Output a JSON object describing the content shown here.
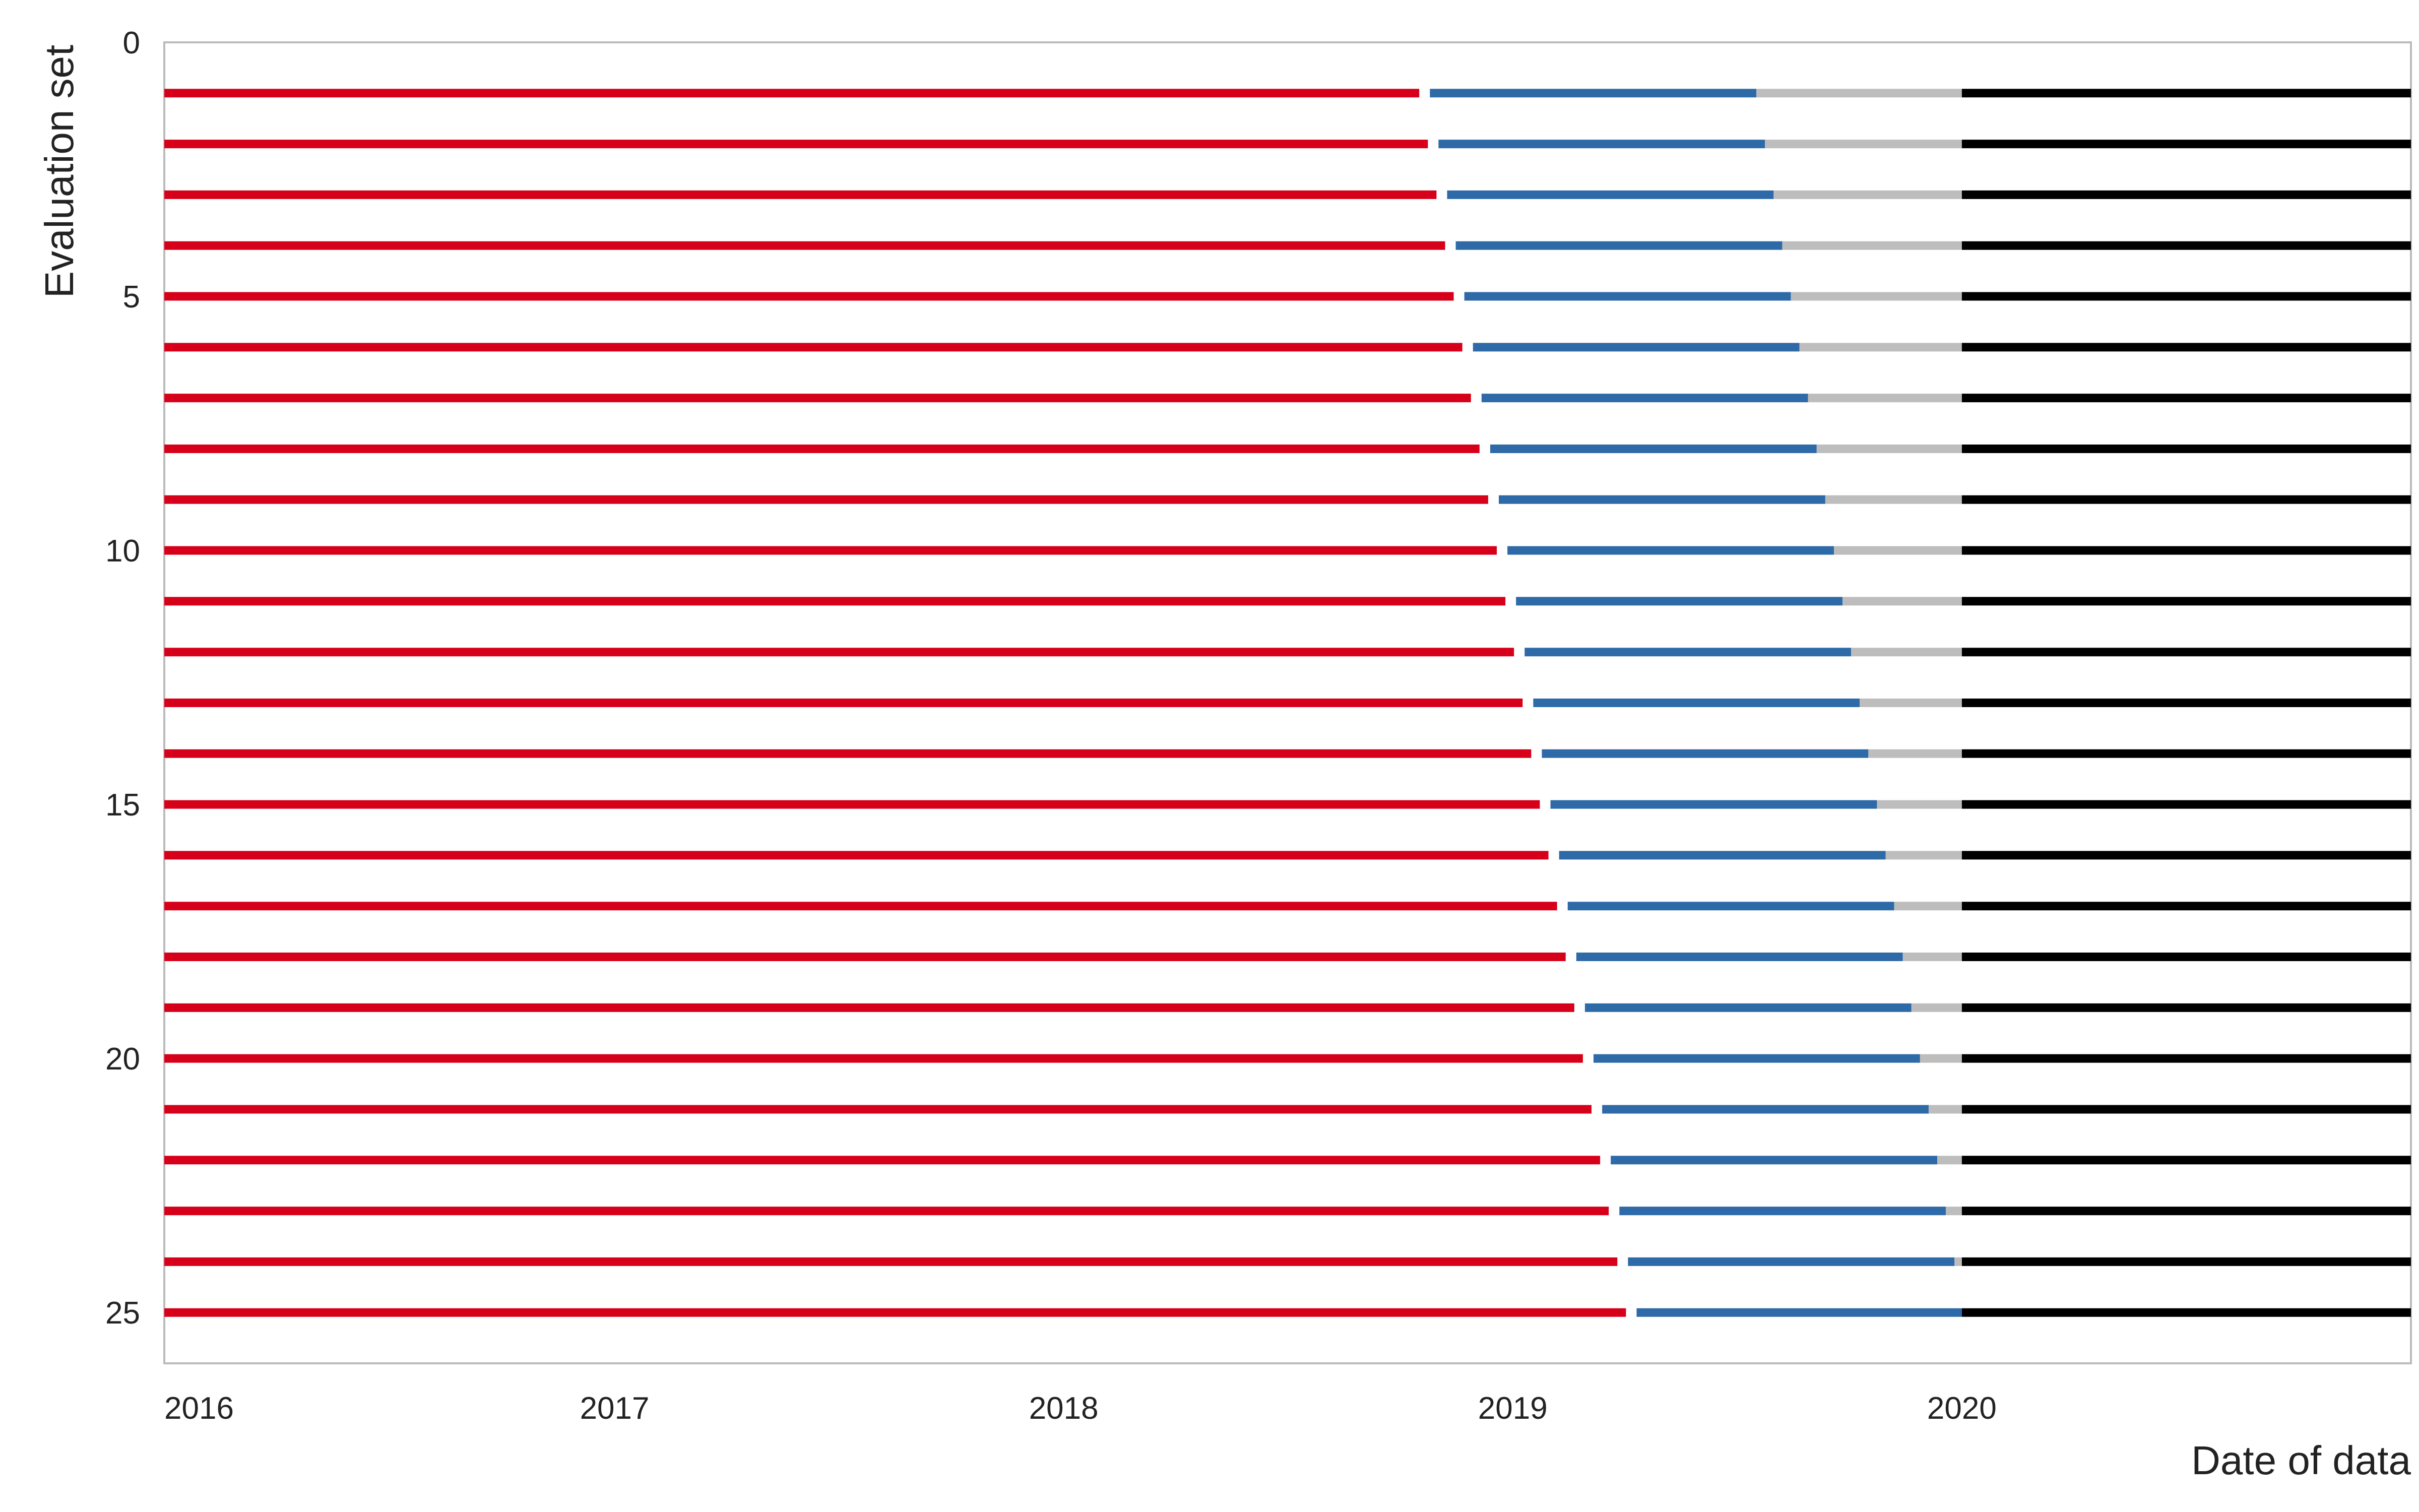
{
  "chart_data": {
    "type": "bar",
    "subtype": "horizontal-timeline-segments",
    "title": "",
    "xlabel": "Date of data",
    "ylabel": "Evaluation set",
    "x_axis": {
      "type": "date",
      "range": [
        "2016-01-01",
        "2020-12-31"
      ],
      "ticks": [
        "2016",
        "2017",
        "2018",
        "2019",
        "2020"
      ]
    },
    "y_axis": {
      "range": [
        0,
        26
      ],
      "inverted": true,
      "ticks": [
        0,
        5,
        10,
        15,
        20,
        25
      ]
    },
    "grid": false,
    "legend": "none",
    "colors": {
      "segment_1": "#d7001a",
      "segment_2": "#2e6aa8",
      "segment_3": "#bdbdbd",
      "segment_4": "#000000",
      "axis": "#bbbbbb"
    },
    "segment_order": [
      "segment_1",
      "segment_2",
      "segment_3",
      "segment_4"
    ],
    "rows": [
      {
        "set": 1,
        "segments": [
          [
            "2016-01-01",
            "2018-10-17"
          ],
          [
            "2018-10-24",
            "2019-07-18"
          ],
          [
            "2019-07-18",
            "2020-01-01"
          ],
          [
            "2020-01-01",
            "2020-12-31"
          ]
        ]
      },
      {
        "set": 2,
        "segments": [
          [
            "2016-01-01",
            "2018-10-24"
          ],
          [
            "2018-10-31",
            "2019-07-25"
          ],
          [
            "2019-07-25",
            "2020-01-01"
          ],
          [
            "2020-01-01",
            "2020-12-31"
          ]
        ]
      },
      {
        "set": 3,
        "segments": [
          [
            "2016-01-01",
            "2018-10-31"
          ],
          [
            "2018-11-07",
            "2019-08-01"
          ],
          [
            "2019-08-01",
            "2020-01-01"
          ],
          [
            "2020-01-01",
            "2020-12-31"
          ]
        ]
      },
      {
        "set": 4,
        "segments": [
          [
            "2016-01-01",
            "2018-11-07"
          ],
          [
            "2018-11-14",
            "2019-08-08"
          ],
          [
            "2019-08-08",
            "2020-01-01"
          ],
          [
            "2020-01-01",
            "2020-12-31"
          ]
        ]
      },
      {
        "set": 5,
        "segments": [
          [
            "2016-01-01",
            "2018-11-14"
          ],
          [
            "2018-11-21",
            "2019-08-15"
          ],
          [
            "2019-08-15",
            "2020-01-01"
          ],
          [
            "2020-01-01",
            "2020-12-31"
          ]
        ]
      },
      {
        "set": 6,
        "segments": [
          [
            "2016-01-01",
            "2018-11-21"
          ],
          [
            "2018-11-28",
            "2019-08-22"
          ],
          [
            "2019-08-22",
            "2020-01-01"
          ],
          [
            "2020-01-01",
            "2020-12-31"
          ]
        ]
      },
      {
        "set": 7,
        "segments": [
          [
            "2016-01-01",
            "2018-11-28"
          ],
          [
            "2018-12-05",
            "2019-08-29"
          ],
          [
            "2019-08-29",
            "2020-01-01"
          ],
          [
            "2020-01-01",
            "2020-12-31"
          ]
        ]
      },
      {
        "set": 8,
        "segments": [
          [
            "2016-01-01",
            "2018-12-05"
          ],
          [
            "2018-12-12",
            "2019-09-05"
          ],
          [
            "2019-09-05",
            "2020-01-01"
          ],
          [
            "2020-01-01",
            "2020-12-31"
          ]
        ]
      },
      {
        "set": 9,
        "segments": [
          [
            "2016-01-01",
            "2018-12-12"
          ],
          [
            "2018-12-19",
            "2019-09-12"
          ],
          [
            "2019-09-12",
            "2020-01-01"
          ],
          [
            "2020-01-01",
            "2020-12-31"
          ]
        ]
      },
      {
        "set": 10,
        "segments": [
          [
            "2016-01-01",
            "2018-12-19"
          ],
          [
            "2018-12-26",
            "2019-09-19"
          ],
          [
            "2019-09-19",
            "2020-01-01"
          ],
          [
            "2020-01-01",
            "2020-12-31"
          ]
        ]
      },
      {
        "set": 11,
        "segments": [
          [
            "2016-01-01",
            "2018-12-26"
          ],
          [
            "2019-01-02",
            "2019-09-26"
          ],
          [
            "2019-09-26",
            "2020-01-01"
          ],
          [
            "2020-01-01",
            "2020-12-31"
          ]
        ]
      },
      {
        "set": 12,
        "segments": [
          [
            "2016-01-01",
            "2019-01-02"
          ],
          [
            "2019-01-09",
            "2019-10-03"
          ],
          [
            "2019-10-03",
            "2020-01-01"
          ],
          [
            "2020-01-01",
            "2020-12-31"
          ]
        ]
      },
      {
        "set": 13,
        "segments": [
          [
            "2016-01-01",
            "2019-01-09"
          ],
          [
            "2019-01-16",
            "2019-10-10"
          ],
          [
            "2019-10-10",
            "2020-01-01"
          ],
          [
            "2020-01-01",
            "2020-12-31"
          ]
        ]
      },
      {
        "set": 14,
        "segments": [
          [
            "2016-01-01",
            "2019-01-16"
          ],
          [
            "2019-01-23",
            "2019-10-17"
          ],
          [
            "2019-10-17",
            "2020-01-01"
          ],
          [
            "2020-01-01",
            "2020-12-31"
          ]
        ]
      },
      {
        "set": 15,
        "segments": [
          [
            "2016-01-01",
            "2019-01-23"
          ],
          [
            "2019-01-30",
            "2019-10-24"
          ],
          [
            "2019-10-24",
            "2020-01-01"
          ],
          [
            "2020-01-01",
            "2020-12-31"
          ]
        ]
      },
      {
        "set": 16,
        "segments": [
          [
            "2016-01-01",
            "2019-01-30"
          ],
          [
            "2019-02-06",
            "2019-10-31"
          ],
          [
            "2019-10-31",
            "2020-01-01"
          ],
          [
            "2020-01-01",
            "2020-12-31"
          ]
        ]
      },
      {
        "set": 17,
        "segments": [
          [
            "2016-01-01",
            "2019-02-06"
          ],
          [
            "2019-02-13",
            "2019-11-07"
          ],
          [
            "2019-11-07",
            "2020-01-01"
          ],
          [
            "2020-01-01",
            "2020-12-31"
          ]
        ]
      },
      {
        "set": 18,
        "segments": [
          [
            "2016-01-01",
            "2019-02-13"
          ],
          [
            "2019-02-20",
            "2019-11-14"
          ],
          [
            "2019-11-14",
            "2020-01-01"
          ],
          [
            "2020-01-01",
            "2020-12-31"
          ]
        ]
      },
      {
        "set": 19,
        "segments": [
          [
            "2016-01-01",
            "2019-02-20"
          ],
          [
            "2019-02-27",
            "2019-11-21"
          ],
          [
            "2019-11-21",
            "2020-01-01"
          ],
          [
            "2020-01-01",
            "2020-12-31"
          ]
        ]
      },
      {
        "set": 20,
        "segments": [
          [
            "2016-01-01",
            "2019-02-27"
          ],
          [
            "2019-03-06",
            "2019-11-28"
          ],
          [
            "2019-11-28",
            "2020-01-01"
          ],
          [
            "2020-01-01",
            "2020-12-31"
          ]
        ]
      },
      {
        "set": 21,
        "segments": [
          [
            "2016-01-01",
            "2019-03-06"
          ],
          [
            "2019-03-13",
            "2019-12-05"
          ],
          [
            "2019-12-05",
            "2020-01-01"
          ],
          [
            "2020-01-01",
            "2020-12-31"
          ]
        ]
      },
      {
        "set": 22,
        "segments": [
          [
            "2016-01-01",
            "2019-03-13"
          ],
          [
            "2019-03-20",
            "2019-12-12"
          ],
          [
            "2019-12-12",
            "2020-01-01"
          ],
          [
            "2020-01-01",
            "2020-12-31"
          ]
        ]
      },
      {
        "set": 23,
        "segments": [
          [
            "2016-01-01",
            "2019-03-20"
          ],
          [
            "2019-03-27",
            "2019-12-19"
          ],
          [
            "2019-12-19",
            "2020-01-01"
          ],
          [
            "2020-01-01",
            "2020-12-31"
          ]
        ]
      },
      {
        "set": 24,
        "segments": [
          [
            "2016-01-01",
            "2019-03-27"
          ],
          [
            "2019-04-03",
            "2019-12-26"
          ],
          [
            "2019-12-26",
            "2020-01-01"
          ],
          [
            "2020-01-01",
            "2020-12-31"
          ]
        ]
      },
      {
        "set": 25,
        "segments": [
          [
            "2016-01-01",
            "2019-04-03"
          ],
          [
            "2019-04-10",
            "2020-01-01"
          ],
          [
            "2020-01-01",
            "2020-01-01"
          ],
          [
            "2020-01-01",
            "2020-12-31"
          ]
        ]
      }
    ]
  }
}
